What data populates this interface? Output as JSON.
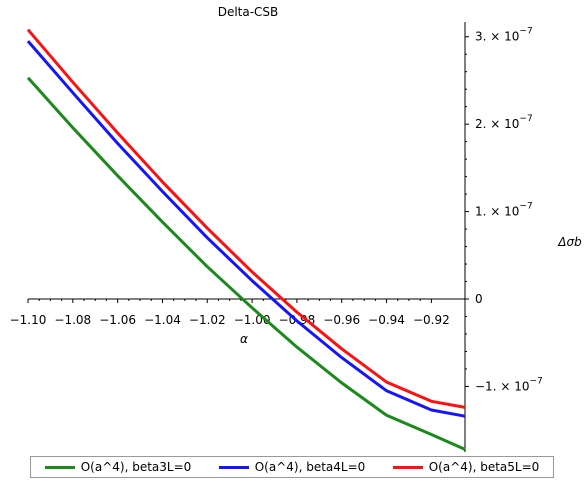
{
  "chart_data": {
    "type": "line",
    "title": "Delta-CSB",
    "xlabel": "α",
    "ylabel": "Δσb",
    "xlim": [
      -1.1,
      -0.905
    ],
    "ylim": [
      -1.75e-07,
      3.1e-07
    ],
    "grid": false,
    "legend_position": "bottom",
    "x_ticks": [
      -1.1,
      -1.08,
      -1.06,
      -1.04,
      -1.02,
      -1.0,
      -0.98,
      -0.96,
      -0.94,
      -0.92
    ],
    "x_tick_labels": [
      "−1.10",
      "−1.08",
      "−1.06",
      "−1.04",
      "−1.02",
      "−1.00",
      "−0.98",
      "−0.96",
      "−0.94",
      "−0.92"
    ],
    "y_ticks": [
      -1e-07,
      0,
      1e-07,
      2e-07,
      3e-07
    ],
    "y_tick_labels": [
      "−1. × 10",
      "0",
      "1. × 10",
      "2. × 10",
      "3. × 10"
    ],
    "y_tick_exponents": [
      "−7",
      "",
      "−7",
      "−7",
      "−7"
    ],
    "series": [
      {
        "name": "O(a^4), beta3L=0",
        "color": "#1a8a1a",
        "x": [
          -1.1,
          -1.08,
          -1.06,
          -1.04,
          -1.02,
          -1.0,
          -0.98,
          -0.96,
          -0.94,
          -0.92,
          -0.905
        ],
        "y": [
          2.53e-07,
          1.96e-07,
          1.41e-07,
          8.8e-08,
          3.7e-08,
          -1e-08,
          -5.5e-08,
          -9.6e-08,
          -1.33e-07,
          -1.55e-07,
          -1.72e-07
        ]
      },
      {
        "name": "O(a^4), beta4L=0",
        "color": "#1414ff",
        "x": [
          -1.1,
          -1.08,
          -1.06,
          -1.04,
          -1.02,
          -1.0,
          -0.98,
          -0.96,
          -0.94,
          -0.92,
          -0.905
        ],
        "y": [
          2.95e-07,
          2.36e-07,
          1.78e-07,
          1.23e-07,
          7e-08,
          2.1e-08,
          -2.5e-08,
          -6.7e-08,
          -1.05e-07,
          -1.27e-07,
          -1.34e-07
        ]
      },
      {
        "name": "O(a^4), beta5L=0",
        "color": "#ff1010",
        "x": [
          -1.1,
          -1.08,
          -1.06,
          -1.04,
          -1.02,
          -1.0,
          -0.98,
          -0.96,
          -0.94,
          -0.92,
          -0.905
        ],
        "y": [
          3.08e-07,
          2.48e-07,
          1.9e-07,
          1.34e-07,
          8.1e-08,
          3.1e-08,
          -1.5e-08,
          -5.7e-08,
          -9.5e-08,
          -1.17e-07,
          -1.24e-07
        ]
      }
    ]
  }
}
